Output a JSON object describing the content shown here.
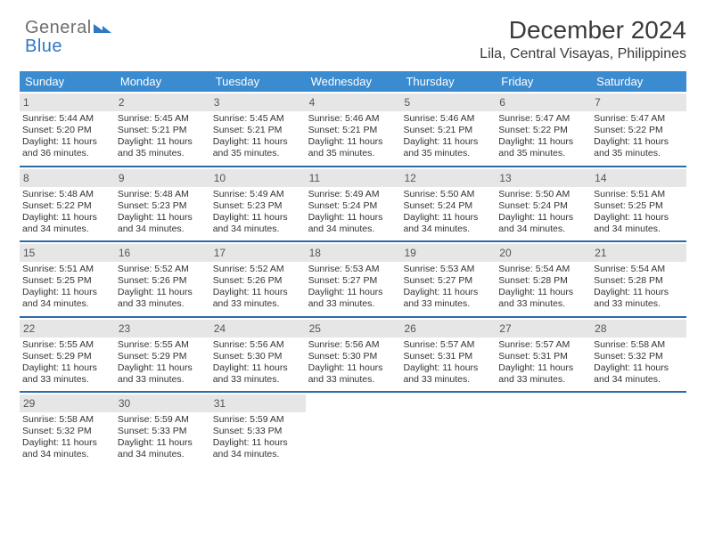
{
  "brand": {
    "part1": "General",
    "part2": "Blue"
  },
  "title": "December 2024",
  "subtitle": "Lila, Central Visayas, Philippines",
  "colors": {
    "header_bg": "#3b8bd0",
    "header_text": "#ffffff",
    "week_divider": "#2f6aa8",
    "daynum_bg": "#e6e6e6",
    "text": "#333333",
    "brand_gray": "#6e6e6e",
    "brand_blue": "#2f78c4",
    "background": "#ffffff"
  },
  "typography": {
    "title_fontsize": 28,
    "subtitle_fontsize": 16,
    "dayhead_fontsize": 13,
    "cell_fontsize": 10.5,
    "font_family": "Arial"
  },
  "day_names": [
    "Sunday",
    "Monday",
    "Tuesday",
    "Wednesday",
    "Thursday",
    "Friday",
    "Saturday"
  ],
  "days": [
    {
      "n": "1",
      "sr": "5:44 AM",
      "ss": "5:20 PM",
      "dl": "11 hours and 36 minutes."
    },
    {
      "n": "2",
      "sr": "5:45 AM",
      "ss": "5:21 PM",
      "dl": "11 hours and 35 minutes."
    },
    {
      "n": "3",
      "sr": "5:45 AM",
      "ss": "5:21 PM",
      "dl": "11 hours and 35 minutes."
    },
    {
      "n": "4",
      "sr": "5:46 AM",
      "ss": "5:21 PM",
      "dl": "11 hours and 35 minutes."
    },
    {
      "n": "5",
      "sr": "5:46 AM",
      "ss": "5:21 PM",
      "dl": "11 hours and 35 minutes."
    },
    {
      "n": "6",
      "sr": "5:47 AM",
      "ss": "5:22 PM",
      "dl": "11 hours and 35 minutes."
    },
    {
      "n": "7",
      "sr": "5:47 AM",
      "ss": "5:22 PM",
      "dl": "11 hours and 35 minutes."
    },
    {
      "n": "8",
      "sr": "5:48 AM",
      "ss": "5:22 PM",
      "dl": "11 hours and 34 minutes."
    },
    {
      "n": "9",
      "sr": "5:48 AM",
      "ss": "5:23 PM",
      "dl": "11 hours and 34 minutes."
    },
    {
      "n": "10",
      "sr": "5:49 AM",
      "ss": "5:23 PM",
      "dl": "11 hours and 34 minutes."
    },
    {
      "n": "11",
      "sr": "5:49 AM",
      "ss": "5:24 PM",
      "dl": "11 hours and 34 minutes."
    },
    {
      "n": "12",
      "sr": "5:50 AM",
      "ss": "5:24 PM",
      "dl": "11 hours and 34 minutes."
    },
    {
      "n": "13",
      "sr": "5:50 AM",
      "ss": "5:24 PM",
      "dl": "11 hours and 34 minutes."
    },
    {
      "n": "14",
      "sr": "5:51 AM",
      "ss": "5:25 PM",
      "dl": "11 hours and 34 minutes."
    },
    {
      "n": "15",
      "sr": "5:51 AM",
      "ss": "5:25 PM",
      "dl": "11 hours and 34 minutes."
    },
    {
      "n": "16",
      "sr": "5:52 AM",
      "ss": "5:26 PM",
      "dl": "11 hours and 33 minutes."
    },
    {
      "n": "17",
      "sr": "5:52 AM",
      "ss": "5:26 PM",
      "dl": "11 hours and 33 minutes."
    },
    {
      "n": "18",
      "sr": "5:53 AM",
      "ss": "5:27 PM",
      "dl": "11 hours and 33 minutes."
    },
    {
      "n": "19",
      "sr": "5:53 AM",
      "ss": "5:27 PM",
      "dl": "11 hours and 33 minutes."
    },
    {
      "n": "20",
      "sr": "5:54 AM",
      "ss": "5:28 PM",
      "dl": "11 hours and 33 minutes."
    },
    {
      "n": "21",
      "sr": "5:54 AM",
      "ss": "5:28 PM",
      "dl": "11 hours and 33 minutes."
    },
    {
      "n": "22",
      "sr": "5:55 AM",
      "ss": "5:29 PM",
      "dl": "11 hours and 33 minutes."
    },
    {
      "n": "23",
      "sr": "5:55 AM",
      "ss": "5:29 PM",
      "dl": "11 hours and 33 minutes."
    },
    {
      "n": "24",
      "sr": "5:56 AM",
      "ss": "5:30 PM",
      "dl": "11 hours and 33 minutes."
    },
    {
      "n": "25",
      "sr": "5:56 AM",
      "ss": "5:30 PM",
      "dl": "11 hours and 33 minutes."
    },
    {
      "n": "26",
      "sr": "5:57 AM",
      "ss": "5:31 PM",
      "dl": "11 hours and 33 minutes."
    },
    {
      "n": "27",
      "sr": "5:57 AM",
      "ss": "5:31 PM",
      "dl": "11 hours and 33 minutes."
    },
    {
      "n": "28",
      "sr": "5:58 AM",
      "ss": "5:32 PM",
      "dl": "11 hours and 34 minutes."
    },
    {
      "n": "29",
      "sr": "5:58 AM",
      "ss": "5:32 PM",
      "dl": "11 hours and 34 minutes."
    },
    {
      "n": "30",
      "sr": "5:59 AM",
      "ss": "5:33 PM",
      "dl": "11 hours and 34 minutes."
    },
    {
      "n": "31",
      "sr": "5:59 AM",
      "ss": "5:33 PM",
      "dl": "11 hours and 34 minutes."
    }
  ],
  "labels": {
    "sunrise": "Sunrise:",
    "sunset": "Sunset:",
    "daylight": "Daylight:"
  },
  "layout": {
    "first_weekday_offset": 0,
    "weeks": 5,
    "cols": 7
  }
}
